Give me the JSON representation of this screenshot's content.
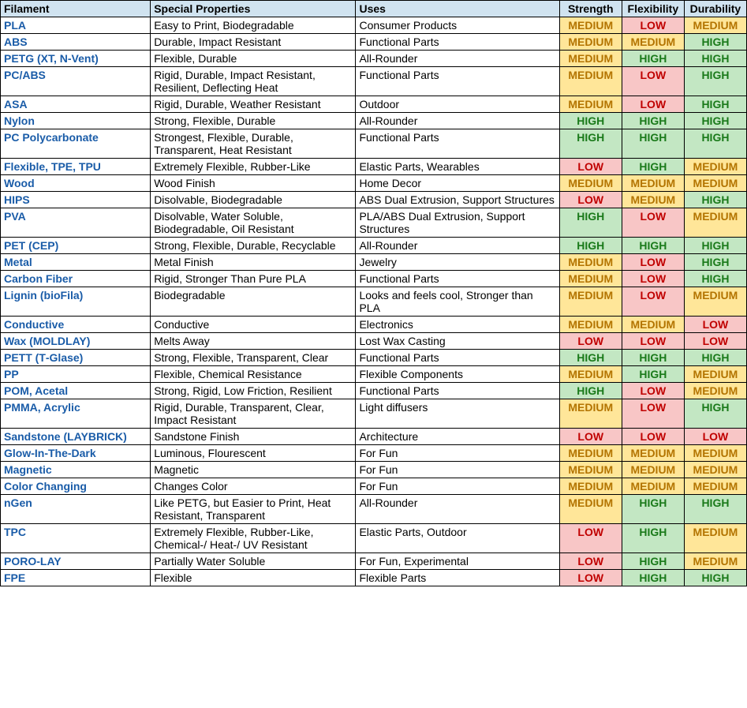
{
  "table": {
    "columns": {
      "filament": "Filament",
      "properties": "Special Properties",
      "uses": "Uses",
      "strength": "Strength",
      "flexibility": "Flexibility",
      "durability": "Durability"
    },
    "ratingLevels": {
      "HIGH": {
        "bg": "#c3e7c3",
        "fg": "#1a7a1a"
      },
      "MEDIUM": {
        "bg": "#ffe699",
        "fg": "#b37400"
      },
      "LOW": {
        "bg": "#f8c6c6",
        "fg": "#c00000"
      }
    },
    "headerBg": "#d0e3f0",
    "filamentColor": "#1a5ca8",
    "rows": [
      {
        "filament": "PLA",
        "properties": "Easy to Print, Biodegradable",
        "uses": "Consumer Products",
        "strength": "MEDIUM",
        "flexibility": "LOW",
        "durability": "MEDIUM"
      },
      {
        "filament": "ABS",
        "properties": "Durable, Impact Resistant",
        "uses": "Functional Parts",
        "strength": "MEDIUM",
        "flexibility": "MEDIUM",
        "durability": "HIGH"
      },
      {
        "filament": "PETG (XT, N‑Vent)",
        "properties": "Flexible, Durable",
        "uses": "All-Rounder",
        "strength": "MEDIUM",
        "flexibility": "HIGH",
        "durability": "HIGH"
      },
      {
        "filament": "PC/ABS",
        "properties": "Rigid, Durable, Impact Resistant, Resilient, Deflecting Heat",
        "uses": "Functional Parts",
        "strength": "MEDIUM",
        "flexibility": "LOW",
        "durability": "HIGH"
      },
      {
        "filament": "ASA",
        "properties": "Rigid, Durable, Weather Resistant",
        "uses": "Outdoor",
        "strength": "MEDIUM",
        "flexibility": "LOW",
        "durability": "HIGH"
      },
      {
        "filament": "Nylon",
        "properties": "Strong, Flexible, Durable",
        "uses": "All-Rounder",
        "strength": "HIGH",
        "flexibility": "HIGH",
        "durability": "HIGH"
      },
      {
        "filament": "PC Polycarbonate",
        "properties": "Strongest, Flexible, Durable, Transparent, Heat Resistant",
        "uses": "Functional Parts",
        "strength": "HIGH",
        "flexibility": "HIGH",
        "durability": "HIGH"
      },
      {
        "filament": "Flexible, TPE, TPU",
        "properties": "Extremely Flexible, Rubber-Like",
        "uses": "Elastic Parts, Wearables",
        "strength": "LOW",
        "flexibility": "HIGH",
        "durability": "MEDIUM"
      },
      {
        "filament": "Wood",
        "properties": "Wood Finish",
        "uses": "Home Decor",
        "strength": "MEDIUM",
        "flexibility": "MEDIUM",
        "durability": "MEDIUM"
      },
      {
        "filament": "HIPS",
        "properties": "Disolvable, Biodegradable",
        "uses": "ABS Dual Extrusion, Support Structures",
        "strength": "LOW",
        "flexibility": "MEDIUM",
        "durability": "HIGH"
      },
      {
        "filament": "PVA",
        "properties": "Disolvable, Water Soluble, Biodegradable, Oil Resistant",
        "uses": "PLA/ABS Dual Extrusion, Support Structures",
        "strength": "HIGH",
        "flexibility": "LOW",
        "durability": "MEDIUM"
      },
      {
        "filament": "PET (CEP)",
        "properties": "Strong, Flexible, Durable, Recyclable",
        "uses": "All-Rounder",
        "strength": "HIGH",
        "flexibility": "HIGH",
        "durability": "HIGH"
      },
      {
        "filament": "Metal",
        "properties": "Metal Finish",
        "uses": "Jewelry",
        "strength": "MEDIUM",
        "flexibility": "LOW",
        "durability": "HIGH"
      },
      {
        "filament": "Carbon Fiber",
        "properties": "Rigid, Stronger Than Pure PLA",
        "uses": "Functional Parts",
        "strength": "MEDIUM",
        "flexibility": "LOW",
        "durability": "HIGH"
      },
      {
        "filament": "Lignin (bioFila)",
        "properties": "Biodegradable",
        "uses": "Looks and feels cool, Stronger than PLA",
        "strength": "MEDIUM",
        "flexibility": "LOW",
        "durability": "MEDIUM"
      },
      {
        "filament": "Conductive",
        "properties": "Conductive",
        "uses": "Electronics",
        "strength": "MEDIUM",
        "flexibility": "MEDIUM",
        "durability": "LOW"
      },
      {
        "filament": "Wax (MOLDLAY)",
        "properties": "Melts Away",
        "uses": "Lost Wax Casting",
        "strength": "LOW",
        "flexibility": "LOW",
        "durability": "LOW"
      },
      {
        "filament": "PETT (T‑Glase)",
        "properties": "Strong, Flexible, Transparent, Clear",
        "uses": "Functional Parts",
        "strength": "HIGH",
        "flexibility": "HIGH",
        "durability": "HIGH"
      },
      {
        "filament": "PP",
        "properties": "Flexible, Chemical Resistance",
        "uses": "Flexible Components",
        "strength": "MEDIUM",
        "flexibility": "HIGH",
        "durability": "MEDIUM"
      },
      {
        "filament": "POM, Acetal",
        "properties": "Strong, Rigid, Low Friction, Resilient",
        "uses": "Functional Parts",
        "strength": "HIGH",
        "flexibility": "LOW",
        "durability": "MEDIUM"
      },
      {
        "filament": "PMMA, Acrylic",
        "properties": "Rigid, Durable, Transparent, Clear, Impact Resistant",
        "uses": "Light diffusers",
        "strength": "MEDIUM",
        "flexibility": "LOW",
        "durability": "HIGH"
      },
      {
        "filament": "Sandstone (LAYBRICK)",
        "properties": "Sandstone Finish",
        "uses": "Architecture",
        "strength": "LOW",
        "flexibility": "LOW",
        "durability": "LOW"
      },
      {
        "filament": "Glow-In-The-Dark",
        "properties": "Luminous, Flourescent",
        "uses": "For Fun",
        "strength": "MEDIUM",
        "flexibility": "MEDIUM",
        "durability": "MEDIUM"
      },
      {
        "filament": "Magnetic",
        "properties": "Magnetic",
        "uses": "For Fun",
        "strength": "MEDIUM",
        "flexibility": "MEDIUM",
        "durability": "MEDIUM"
      },
      {
        "filament": "Color Changing",
        "properties": "Changes Color",
        "uses": "For Fun",
        "strength": "MEDIUM",
        "flexibility": "MEDIUM",
        "durability": "MEDIUM"
      },
      {
        "filament": "nGen",
        "properties": "Like PETG, but Easier to Print, Heat Resistant, Transparent",
        "uses": "All-Rounder",
        "strength": "MEDIUM",
        "flexibility": "HIGH",
        "durability": "HIGH"
      },
      {
        "filament": "TPC",
        "properties": "Extremely Flexible, Rubber-Like, Chemical-/ Heat-/ UV Resistant",
        "uses": "Elastic Parts, Outdoor",
        "strength": "LOW",
        "flexibility": "HIGH",
        "durability": "MEDIUM"
      },
      {
        "filament": "PORO-LAY",
        "properties": "Partially Water Soluble",
        "uses": "For Fun, Experimental",
        "strength": "LOW",
        "flexibility": "HIGH",
        "durability": "MEDIUM"
      },
      {
        "filament": "FPE",
        "properties": "Flexible",
        "uses": "Flexible Parts",
        "strength": "LOW",
        "flexibility": "HIGH",
        "durability": "HIGH"
      }
    ]
  }
}
